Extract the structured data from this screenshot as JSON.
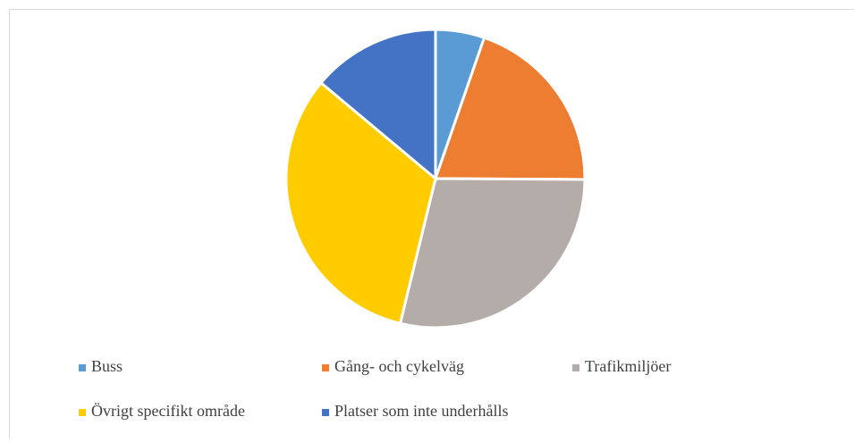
{
  "chart_data": {
    "type": "pie",
    "categories": [
      "Buss",
      "Gång- och cykelväg",
      "Trafikmiljöer",
      "Övrigt specifikt område",
      "Platser som inte underhålls"
    ],
    "values": [
      5.3,
      19.8,
      28.7,
      32.3,
      13.9
    ],
    "colors": [
      "#5b9bd5",
      "#ed7d31",
      "#b4aca8",
      "#ffcc00",
      "#4472c4"
    ],
    "legend": "bottom"
  }
}
